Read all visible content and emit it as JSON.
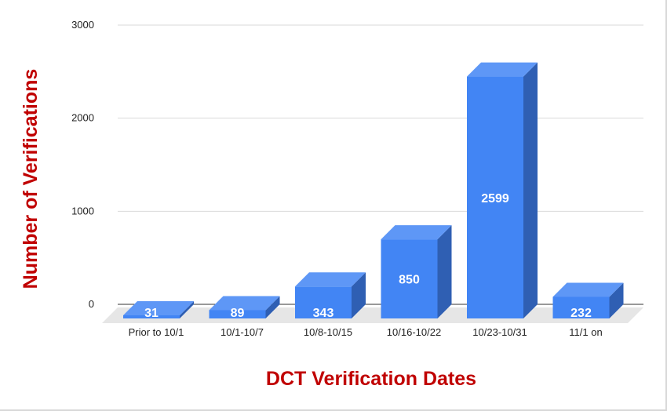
{
  "chart_data": {
    "type": "bar",
    "style": "3d",
    "title": "",
    "categories": [
      "Prior to 10/1",
      "10/1-10/7",
      "10/8-10/15",
      "10/16-10/22",
      "10/23-10/31",
      "11/1 on"
    ],
    "values": [
      31,
      89,
      343,
      850,
      2599,
      232
    ],
    "xlabel": "DCT Verification Dates",
    "ylabel": "Number of Verifications",
    "ylim": [
      0,
      3000
    ],
    "yticks": [
      0,
      1000,
      2000,
      3000
    ],
    "grid": true,
    "legend": "none",
    "colors": {
      "bar_front": "#4285f4",
      "bar_top": "#5e97f6",
      "bar_side": "#2f5fb3",
      "floor": "#e6e6e6",
      "gridline": "#d9d9d9",
      "axis_title": "#c00000",
      "data_label": "#ffffff"
    }
  }
}
